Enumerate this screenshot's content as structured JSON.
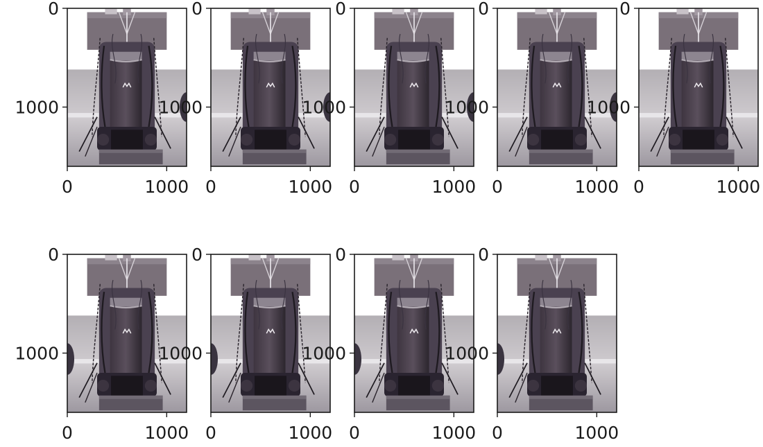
{
  "figure": {
    "rows": 2,
    "cols": 5
  },
  "chart_data": [
    {
      "type": "image",
      "panel": 1,
      "xticks": [
        0,
        1000
      ],
      "yticks": [
        0,
        1000
      ],
      "xlim": [
        0,
        1200
      ],
      "ylim": [
        1600,
        0
      ]
    },
    {
      "type": "image",
      "panel": 2,
      "xticks": [
        0,
        1000
      ],
      "yticks": [
        0,
        1000
      ],
      "xlim": [
        0,
        1200
      ],
      "ylim": [
        1600,
        0
      ]
    },
    {
      "type": "image",
      "panel": 3,
      "xticks": [
        0,
        1000
      ],
      "yticks": [
        0,
        1000
      ],
      "xlim": [
        0,
        1200
      ],
      "ylim": [
        1600,
        0
      ]
    },
    {
      "type": "image",
      "panel": 4,
      "xticks": [
        0,
        1000
      ],
      "yticks": [
        0,
        1000
      ],
      "xlim": [
        0,
        1200
      ],
      "ylim": [
        1600,
        0
      ]
    },
    {
      "type": "image",
      "panel": 5,
      "xticks": [
        0,
        1000
      ],
      "yticks": [
        0,
        1000
      ],
      "xlim": [
        0,
        1200
      ],
      "ylim": [
        1600,
        0
      ]
    },
    {
      "type": "image",
      "panel": 6,
      "xticks": [
        0,
        1000
      ],
      "yticks": [
        0,
        1000
      ],
      "xlim": [
        0,
        1200
      ],
      "ylim": [
        1600,
        0
      ]
    },
    {
      "type": "image",
      "panel": 7,
      "xticks": [
        0,
        1000
      ],
      "yticks": [
        0,
        1000
      ],
      "xlim": [
        0,
        1200
      ],
      "ylim": [
        1600,
        0
      ]
    },
    {
      "type": "image",
      "panel": 8,
      "xticks": [
        0,
        1000
      ],
      "yticks": [
        0,
        1000
      ],
      "xlim": [
        0,
        1200
      ],
      "ylim": [
        1600,
        0
      ]
    },
    {
      "type": "image",
      "panel": 9,
      "xticks": [
        0,
        1000
      ],
      "yticks": [
        0,
        1000
      ],
      "xlim": [
        0,
        1200
      ],
      "ylim": [
        1600,
        0
      ]
    }
  ]
}
